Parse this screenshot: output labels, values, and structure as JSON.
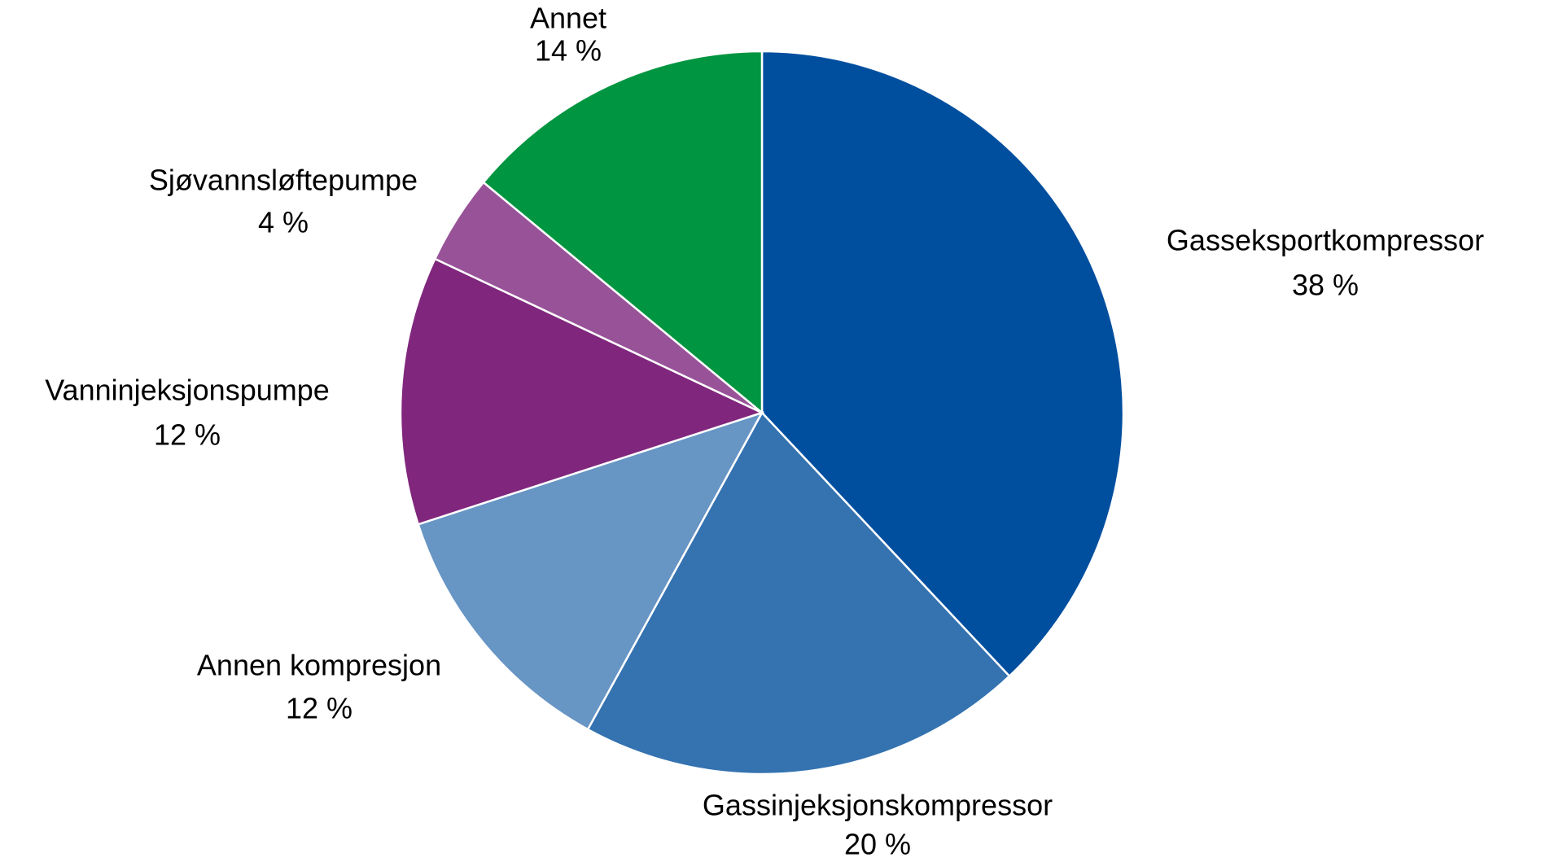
{
  "chart_data": {
    "type": "pie",
    "categories": [
      "Gasseksportkompressor",
      "Gassinjeksjonskompressor",
      "Annen kompresjon",
      "Vanninjeksjonspumpe",
      "Sjøvannsløftepumpe",
      "Annet"
    ],
    "values": [
      38,
      20,
      12,
      12,
      4,
      14
    ],
    "value_labels": [
      "38 %",
      "20 %",
      "12 %",
      "12 %",
      "4 %",
      "14 %"
    ],
    "colors": [
      "#004f9f",
      "#3472b0",
      "#6795c4",
      "#80277d",
      "#985398",
      "#009540"
    ]
  }
}
